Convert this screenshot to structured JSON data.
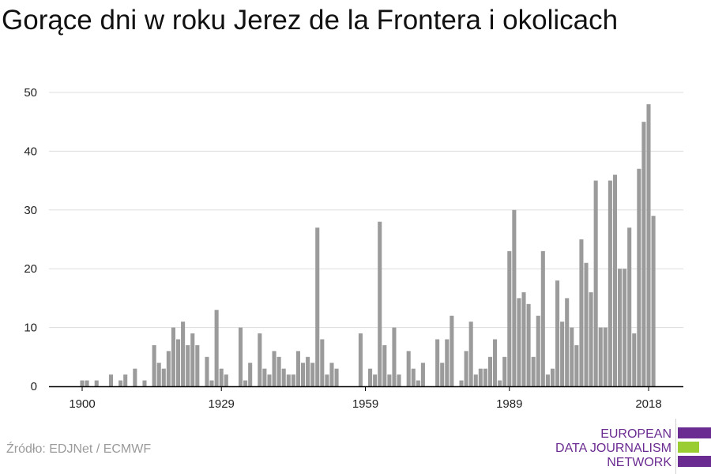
{
  "title": "Gorące dni w roku Jerez de la Frontera i okolicach",
  "source": "Źródło: EDJNet / ECMWF",
  "logo": {
    "lines": [
      "EUROPEAN",
      "DATA JOURNALISM",
      "NETWORK"
    ],
    "colors": {
      "purple": "#6b2c91",
      "green": "#9acd32"
    }
  },
  "colors": {
    "bar": "#9b9b9b",
    "grid": "#dddddd",
    "axis": "#000000"
  },
  "chart_data": {
    "type": "bar",
    "title": "Gorące dni w roku Jerez de la Frontera i okolicach",
    "xlabel": "",
    "ylabel": "",
    "ylim": [
      0,
      50
    ],
    "yticks": [
      0,
      10,
      20,
      30,
      40,
      50
    ],
    "xticks": [
      1900,
      1929,
      1959,
      1989,
      2018
    ],
    "grid": true,
    "x": [
      1900,
      1901,
      1902,
      1903,
      1904,
      1905,
      1906,
      1907,
      1908,
      1909,
      1910,
      1911,
      1912,
      1913,
      1914,
      1915,
      1916,
      1917,
      1918,
      1919,
      1920,
      1921,
      1922,
      1923,
      1924,
      1925,
      1926,
      1927,
      1928,
      1929,
      1930,
      1931,
      1932,
      1933,
      1934,
      1935,
      1936,
      1937,
      1938,
      1939,
      1940,
      1941,
      1942,
      1943,
      1944,
      1945,
      1946,
      1947,
      1948,
      1949,
      1950,
      1951,
      1952,
      1953,
      1954,
      1955,
      1956,
      1957,
      1958,
      1959,
      1960,
      1961,
      1962,
      1963,
      1964,
      1965,
      1966,
      1967,
      1968,
      1969,
      1970,
      1971,
      1972,
      1973,
      1974,
      1975,
      1976,
      1977,
      1978,
      1979,
      1980,
      1981,
      1982,
      1983,
      1984,
      1985,
      1986,
      1987,
      1988,
      1989,
      1990,
      1991,
      1992,
      1993,
      1994,
      1995,
      1996,
      1997,
      1998,
      1999,
      2000,
      2001,
      2002,
      2003,
      2004,
      2005,
      2006,
      2007,
      2008,
      2009,
      2010,
      2011,
      2012,
      2013,
      2014,
      2015,
      2016,
      2017,
      2018,
      2019
    ],
    "values": [
      1,
      1,
      0,
      1,
      0,
      0,
      2,
      0,
      1,
      2,
      0,
      3,
      0,
      1,
      0,
      7,
      4,
      3,
      6,
      10,
      8,
      11,
      7,
      9,
      7,
      0,
      5,
      1,
      13,
      3,
      2,
      0,
      0,
      10,
      1,
      4,
      0,
      9,
      3,
      2,
      6,
      5,
      3,
      2,
      2,
      6,
      4,
      5,
      4,
      27,
      8,
      2,
      4,
      3,
      0,
      0,
      0,
      0,
      9,
      0,
      3,
      2,
      28,
      7,
      2,
      10,
      2,
      0,
      6,
      3,
      1,
      4,
      0,
      0,
      8,
      4,
      8,
      12,
      0,
      1,
      6,
      11,
      2,
      3,
      3,
      5,
      8,
      1,
      5,
      23,
      30,
      15,
      16,
      14,
      5,
      12,
      23,
      2,
      3,
      18,
      11,
      15,
      10,
      7,
      25,
      21,
      16,
      35,
      10,
      10,
      35,
      36,
      20,
      20,
      27,
      9,
      37,
      45,
      48,
      29
    ]
  }
}
